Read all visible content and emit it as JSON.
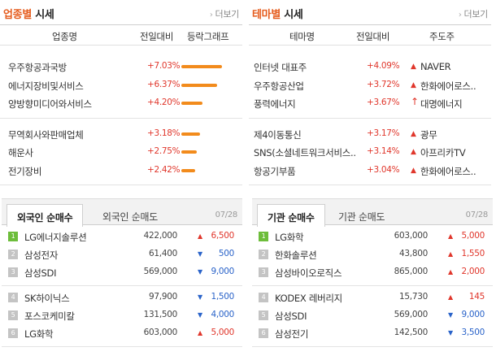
{
  "industry": {
    "title_highlight": "업종별",
    "title_rest": " 시세",
    "more": "더보기",
    "columns": [
      "업종명",
      "전일대비",
      "등락그래프"
    ],
    "rows": [
      {
        "name": "우주항공과국방",
        "pct": "+7.03%",
        "bar_ratio": 1.0
      },
      {
        "name": "에너지장비및서비스",
        "pct": "+6.37%",
        "bar_ratio": 0.87
      },
      {
        "name": "양방향미디어와서비스",
        "pct": "+4.20%",
        "bar_ratio": 0.52
      },
      {
        "name": "무역회사와판매업체",
        "pct": "+3.18%",
        "bar_ratio": 0.45
      },
      {
        "name": "해운사",
        "pct": "+2.75%",
        "bar_ratio": 0.38
      },
      {
        "name": "전기장비",
        "pct": "+2.42%",
        "bar_ratio": 0.33
      }
    ]
  },
  "theme": {
    "title_highlight": "테마별",
    "title_rest": " 시세",
    "more": "더보기",
    "columns": [
      "테마명",
      "전일대비",
      "주도주"
    ],
    "rows": [
      {
        "name": "인터넷 대표주",
        "pct": "+4.09%",
        "leader": "NAVER",
        "arrow": "▲"
      },
      {
        "name": "우주항공산업",
        "pct": "+3.72%",
        "leader": "한화에어로스..",
        "arrow": "▲"
      },
      {
        "name": "풍력에너지",
        "pct": "+3.67%",
        "leader": "대명에너지",
        "arrow": "↑"
      },
      {
        "name": "제4이동통신",
        "pct": "+3.17%",
        "leader": "광무",
        "arrow": "▲"
      },
      {
        "name": "SNS(소셜네트워크서비스..",
        "pct": "+3.14%",
        "leader": "아프리카TV",
        "arrow": "▲"
      },
      {
        "name": "항공기부품",
        "pct": "+3.04%",
        "leader": "한화에어로스..",
        "arrow": "▲"
      }
    ]
  },
  "foreign": {
    "tab_active": "외국인 순매수",
    "tab_inactive": "외국인 순매도",
    "date": "07/28",
    "rows": [
      {
        "rank": "1",
        "name": "LG에너지솔루션",
        "amount": "422,000",
        "dir": "up",
        "change": "6,500"
      },
      {
        "rank": "2",
        "name": "삼성전자",
        "amount": "61,400",
        "dir": "down",
        "change": "500"
      },
      {
        "rank": "3",
        "name": "삼성SDI",
        "amount": "569,000",
        "dir": "down",
        "change": "9,000"
      },
      {
        "rank": "4",
        "name": "SK하이닉스",
        "amount": "97,900",
        "dir": "down",
        "change": "1,500"
      },
      {
        "rank": "5",
        "name": "포스코케미칼",
        "amount": "131,500",
        "dir": "down",
        "change": "4,000"
      },
      {
        "rank": "6",
        "name": "LG화학",
        "amount": "603,000",
        "dir": "up",
        "change": "5,000"
      }
    ]
  },
  "institution": {
    "tab_active": "기관 순매수",
    "tab_inactive": "기관 순매도",
    "date": "07/28",
    "rows": [
      {
        "rank": "1",
        "name": "LG화학",
        "amount": "603,000",
        "dir": "up",
        "change": "5,000"
      },
      {
        "rank": "2",
        "name": "한화솔루션",
        "amount": "43,800",
        "dir": "up",
        "change": "1,550"
      },
      {
        "rank": "3",
        "name": "삼성바이오로직스",
        "amount": "865,000",
        "dir": "up",
        "change": "2,000"
      },
      {
        "rank": "4",
        "name": "KODEX 레버리지",
        "amount": "15,730",
        "dir": "up",
        "change": "145"
      },
      {
        "rank": "5",
        "name": "삼성SDI",
        "amount": "569,000",
        "dir": "down",
        "change": "9,000"
      },
      {
        "rank": "6",
        "name": "삼성전기",
        "amount": "142,500",
        "dir": "down",
        "change": "3,500"
      }
    ]
  },
  "colors": {
    "accent": "#e55b1c",
    "up": "#e0362b",
    "down": "#2a63c9",
    "bar": "#f28b1c",
    "rank_first": "#6dbd3b"
  }
}
